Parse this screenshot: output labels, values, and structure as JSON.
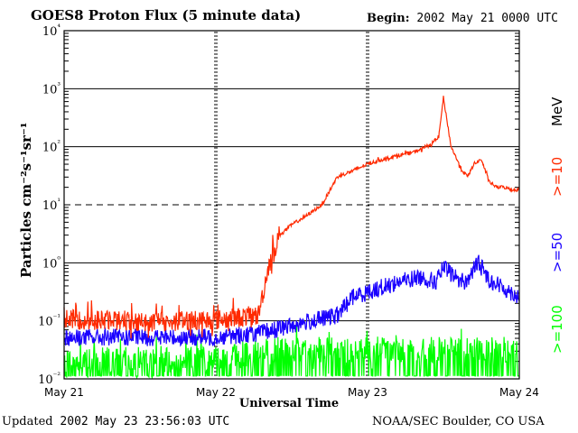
{
  "header": {
    "title": "GOES8 Proton Flux (5 minute data)",
    "begin_label": "Begin:",
    "begin_value": "2002 May 21 0000 UTC"
  },
  "footer": {
    "updated_label": "Updated",
    "updated_value": "2002 May 23 23:56:03 UTC",
    "credit": "NOAA/SEC Boulder, CO USA"
  },
  "chart_data": {
    "type": "line",
    "title": "GOES8 Proton Flux (5 minute data)",
    "xlabel": "Universal Time",
    "ylabel": "Particles cm⁻²s⁻¹sr⁻¹",
    "yscale": "log",
    "ylim": [
      0.01,
      10000
    ],
    "xlim": [
      "May 21",
      "May 24"
    ],
    "x_tick_labels": [
      "May 21",
      "May 22",
      "May 23",
      "May 24"
    ],
    "y_tick_labels": [
      "10⁻²",
      "10⁻¹",
      "10⁰",
      "10¹",
      "10²",
      "10³",
      "10⁴"
    ],
    "energy_unit": "MeV",
    "legend_placement": "right, vertical",
    "threshold_line": 10,
    "x_unit": "days since 2002-05-21 00:00 UTC",
    "series": [
      {
        "name": ">=10",
        "color": "#ff2a00",
        "x": [
          0.0,
          0.3,
          0.6,
          0.9,
          1.0,
          1.15,
          1.28,
          1.35,
          1.42,
          1.5,
          1.6,
          1.7,
          1.8,
          1.9,
          2.0,
          2.1,
          2.2,
          2.3,
          2.35,
          2.42,
          2.47,
          2.5,
          2.55,
          2.62,
          2.66,
          2.7,
          2.75,
          2.8,
          2.85,
          2.9,
          2.95,
          3.0
        ],
        "values": [
          0.1,
          0.1,
          0.09,
          0.1,
          0.1,
          0.11,
          0.12,
          0.9,
          3.0,
          4.5,
          6.5,
          10,
          30,
          38,
          50,
          60,
          70,
          80,
          90,
          110,
          150,
          700,
          100,
          40,
          30,
          50,
          60,
          25,
          20,
          20,
          18,
          18
        ]
      },
      {
        "name": ">=50",
        "color": "#1a00ff",
        "x": [
          0.0,
          0.5,
          1.0,
          1.3,
          1.5,
          1.8,
          1.9,
          2.0,
          2.2,
          2.35,
          2.45,
          2.5,
          2.6,
          2.65,
          2.73,
          2.8,
          2.9,
          3.0
        ],
        "values": [
          0.05,
          0.05,
          0.05,
          0.06,
          0.08,
          0.12,
          0.25,
          0.3,
          0.45,
          0.55,
          0.45,
          0.8,
          0.5,
          0.45,
          1.0,
          0.5,
          0.35,
          0.25
        ]
      },
      {
        "name": ">=100",
        "color": "#00ff00",
        "x": [
          0.0,
          0.5,
          1.0,
          1.5,
          2.0,
          2.5,
          3.0
        ],
        "values": [
          0.02,
          0.02,
          0.022,
          0.03,
          0.03,
          0.03,
          0.03
        ]
      }
    ]
  }
}
